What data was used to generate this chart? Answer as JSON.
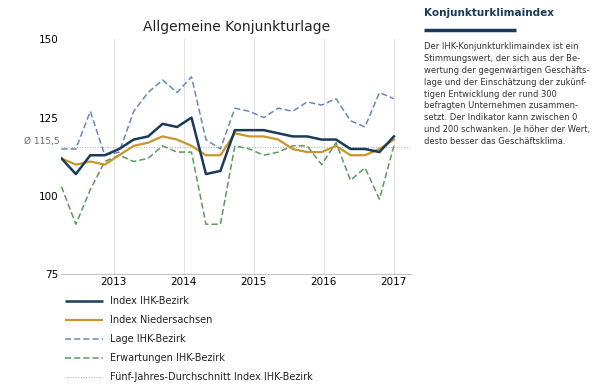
{
  "title": "Allgemeine Konjunkturlage",
  "ylim": [
    75,
    150
  ],
  "yticks": [
    75,
    100,
    125,
    150
  ],
  "avg_value": 115.5,
  "avg_label": "Ø 115,5",
  "x_labels": [
    "2013",
    "2014",
    "2015",
    "2016",
    "2017"
  ],
  "colors": {
    "index_bezirk": "#1a3a5c",
    "index_niedersachsen": "#c8962a",
    "lage_bezirk": "#6688bb",
    "erwartungen_bezirk": "#5a9a5a",
    "average": "#aaaaaa"
  },
  "legend_labels": [
    "Index IHK-Bezirk",
    "Index Niedersachsen",
    "Lage IHK-Bezirk",
    "Erwartungen IHK-Bezirk",
    "Fünf-Jahres-Durchschnitt Index IHK-Bezirk"
  ],
  "sidebar_title": "Konjunkturklimaindex",
  "sidebar_text": "Der IHK-Konjunkturklimaindex ist ein\nStimmungswert, der sich aus der Be-\nwertung der gegenwärtigen Geschäfts-\nlage und der Einschätzung der zukünf-\ntigen Entwicklung der rund 300\nbefragten Unternehmen zusammen-\nsetzt. Der Indikator kann zwischen 0\nund 200 schwanken. Je höher der Wert,\ndesto besser das Geschäftsklima.",
  "index_bezirk": [
    112,
    107,
    113,
    113,
    115,
    118,
    119,
    123,
    122,
    125,
    107,
    108,
    121,
    121,
    121,
    120,
    119,
    119,
    118,
    118,
    115,
    115,
    114,
    119
  ],
  "index_niedersachsen": [
    112,
    110,
    111,
    110,
    113,
    116,
    117,
    119,
    118,
    116,
    113,
    113,
    120,
    119,
    119,
    118,
    115,
    114,
    114,
    116,
    113,
    113,
    115,
    118
  ],
  "lage_bezirk": [
    115,
    115,
    127,
    113,
    114,
    127,
    133,
    137,
    133,
    138,
    118,
    115,
    128,
    127,
    125,
    128,
    127,
    130,
    129,
    131,
    124,
    122,
    133,
    131
  ],
  "erwartungen_bezirk": [
    103,
    91,
    102,
    111,
    113,
    111,
    112,
    116,
    114,
    114,
    91,
    91,
    116,
    115,
    113,
    114,
    116,
    116,
    110,
    117,
    105,
    109,
    99,
    116
  ]
}
